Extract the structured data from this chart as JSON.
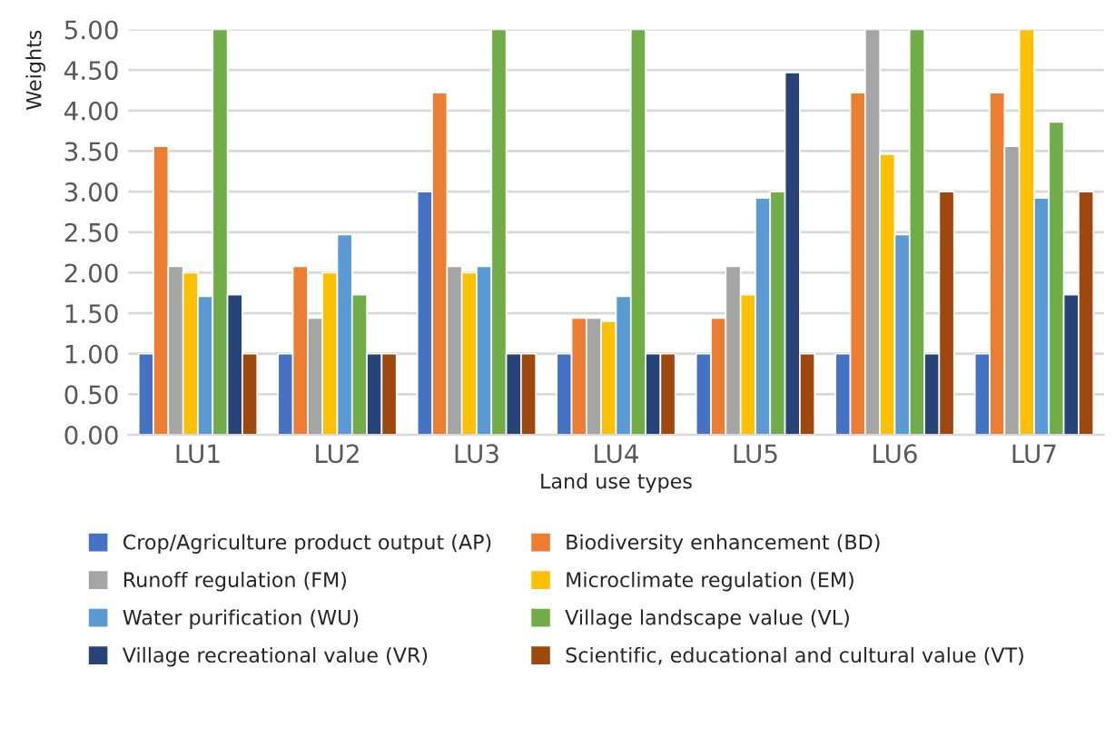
{
  "chart_data": {
    "type": "bar",
    "xlabel": "Land use types",
    "ylabel": "Weights",
    "categories": [
      "LU1",
      "LU2",
      "LU3",
      "LU4",
      "LU5",
      "LU6",
      "LU7"
    ],
    "series": [
      {
        "name": "Crop/Agriculture product output (AP)",
        "color": "#4472c4",
        "values": [
          1,
          1,
          3,
          1,
          1,
          1,
          1
        ]
      },
      {
        "name": "Biodiversity enhancement (BD)",
        "color": "#ed7d31",
        "values": [
          3.56,
          2.08,
          4.22,
          1.44,
          1.44,
          4.22,
          4.22
        ]
      },
      {
        "name": "Runoff regulation (FM)",
        "color": "#a5a5a5",
        "values": [
          2.08,
          1.44,
          2.08,
          1.44,
          2.08,
          5,
          3.56
        ]
      },
      {
        "name": "Microclimate regulation (EM)",
        "color": "#ffc000",
        "values": [
          2,
          2,
          2,
          1.4,
          1.73,
          3.46,
          5
        ]
      },
      {
        "name": "Water purification (WU)",
        "color": "#5b9bd5",
        "values": [
          1.71,
          2.47,
          2.08,
          1.71,
          2.92,
          2.47,
          2.92
        ]
      },
      {
        "name": "Village landscape value (VL)",
        "color": "#70ad47",
        "values": [
          5,
          1.73,
          5,
          5,
          3,
          5,
          3.86
        ]
      },
      {
        "name": "Village recreational value (VR)",
        "color": "#264478",
        "values": [
          1.73,
          1,
          1,
          1,
          4.47,
          1,
          1.73
        ]
      },
      {
        "name": "Scientific, educational and cultural value (VT)",
        "color": "#9e480e",
        "values": [
          1,
          1,
          1,
          1,
          1,
          3,
          3
        ]
      }
    ],
    "ylim": [
      0,
      5.0
    ],
    "yticks": [
      {
        "value": 0,
        "label": "0.00"
      },
      {
        "value": 0.5,
        "label": "0.50"
      },
      {
        "value": 1,
        "label": "1.00"
      },
      {
        "value": 1.5,
        "label": "1.50"
      },
      {
        "value": 2,
        "label": "2.00"
      },
      {
        "value": 2.5,
        "label": "2.50"
      },
      {
        "value": 3,
        "label": "3.00"
      },
      {
        "value": 3.5,
        "label": "3.50"
      },
      {
        "value": 4,
        "label": "4.00"
      },
      {
        "value": 4.5,
        "label": "4.50"
      },
      {
        "value": 5,
        "label": "5.00"
      }
    ],
    "grid": "y",
    "legend": "bottom"
  }
}
